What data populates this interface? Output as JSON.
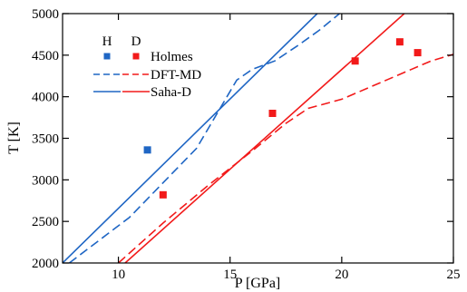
{
  "chart_data": {
    "type": "line",
    "xlabel": "P [GPa]",
    "ylabel": "T [K]",
    "xlim": [
      7.5,
      25
    ],
    "ylim": [
      2000,
      5000
    ],
    "xticks": [
      10,
      15,
      20,
      25
    ],
    "yticks": [
      2000,
      2500,
      3000,
      3500,
      4000,
      4500,
      5000
    ],
    "grid": false,
    "legend": {
      "placement": "top-left",
      "column_headers": [
        "H",
        "D"
      ],
      "rows": [
        {
          "label": "Holmes",
          "style": "square"
        },
        {
          "label": "DFT-MD",
          "style": "dashed"
        },
        {
          "label": "Saha-D",
          "style": "solid"
        }
      ]
    },
    "colors": {
      "H": "#1f66c4",
      "D": "#f21a1a"
    },
    "series": [
      {
        "group": "H",
        "kind": "Saha-D",
        "style": "solid",
        "x": [
          7.5,
          18.9
        ],
        "y": [
          2000,
          5000
        ]
      },
      {
        "group": "H",
        "kind": "DFT-MD",
        "style": "dashed",
        "x": [
          7.8,
          10.5,
          13.5,
          15.3,
          16.0,
          17.0,
          18.0,
          19.0,
          19.9
        ],
        "y": [
          2000,
          2550,
          3380,
          4200,
          4330,
          4430,
          4610,
          4800,
          5000
        ]
      },
      {
        "group": "H",
        "kind": "Holmes",
        "style": "square",
        "x": [
          11.3
        ],
        "y": [
          3360
        ]
      },
      {
        "group": "D",
        "kind": "Saha-D",
        "style": "solid",
        "x": [
          10.3,
          22.8
        ],
        "y": [
          2000,
          5000
        ]
      },
      {
        "group": "D",
        "kind": "DFT-MD",
        "style": "dashed",
        "x": [
          10.0,
          12.0,
          14.0,
          16.0,
          17.5,
          18.5,
          20.0,
          22.0,
          24.0,
          25.0
        ],
        "y": [
          2000,
          2480,
          2930,
          3350,
          3680,
          3860,
          3970,
          4200,
          4430,
          4510
        ]
      },
      {
        "group": "D",
        "kind": "Holmes",
        "style": "square",
        "x": [
          12.0,
          16.9,
          20.6,
          22.6,
          23.4
        ],
        "y": [
          2820,
          3800,
          4430,
          4660,
          4530
        ]
      }
    ]
  }
}
